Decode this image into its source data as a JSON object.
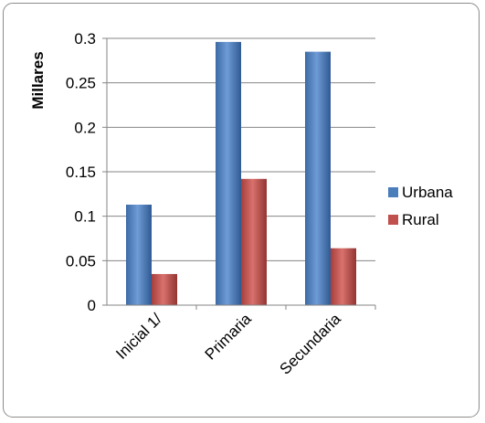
{
  "chart_data": {
    "type": "bar",
    "title": "",
    "xlabel": "",
    "ylabel": "Millares",
    "categories": [
      "Inicial 1/",
      "Primaria",
      "Secundaria"
    ],
    "series": [
      {
        "name": "Urbana",
        "values": [
          0.113,
          0.296,
          0.285
        ],
        "color": "#4a7ebb"
      },
      {
        "name": "Rural",
        "values": [
          0.035,
          0.142,
          0.064
        ],
        "color": "#c0504d"
      }
    ],
    "ylim": [
      0,
      0.3
    ],
    "yticks": [
      0,
      0.05,
      0.1,
      0.15,
      0.2,
      0.25,
      0.3
    ],
    "ytick_labels": [
      "0",
      "0.05",
      "0.1",
      "0.15",
      "0.2",
      "0.25",
      "0.3"
    ],
    "grid": true,
    "legend_position": "right"
  }
}
